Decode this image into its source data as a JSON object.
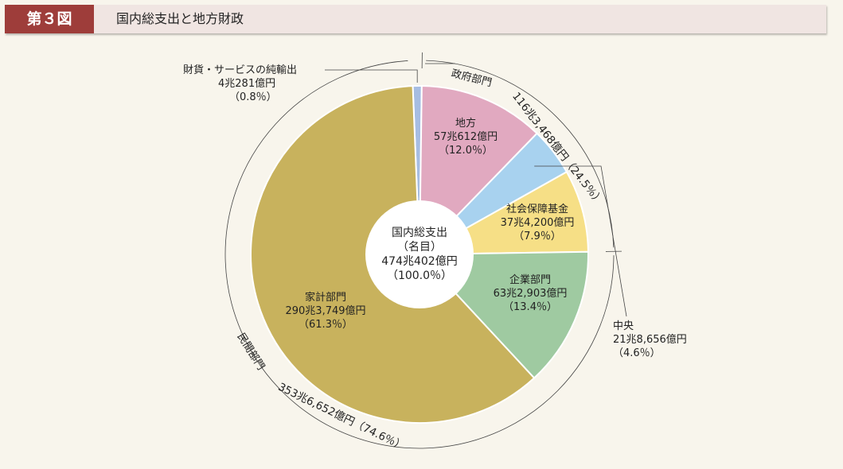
{
  "figure": {
    "label": "第３図",
    "title": "国内総支出と地方財政"
  },
  "chart_data": {
    "type": "pie",
    "subtype": "donut",
    "center_label": [
      "国内総支出",
      "（名目）",
      "474兆402億円",
      "（100.0％）"
    ],
    "total": 474.0402,
    "unit": "兆円",
    "slices": [
      {
        "key": "net_exports",
        "name": "財貨・サービスの純輸出",
        "value_text": "4兆281億円",
        "pct_text": "（0.8％）",
        "value": 4.0281,
        "pct": 0.8,
        "color": "#a6bde2"
      },
      {
        "key": "local",
        "name": "地方",
        "value_text": "57兆612億円",
        "pct_text": "（12.0％）",
        "value": 57.0612,
        "pct": 12.0,
        "color": "#e1a9c0"
      },
      {
        "key": "central",
        "name": "中央",
        "value_text": "21兆8,656億円",
        "pct_text": "（4.6％）",
        "value": 21.8656,
        "pct": 4.6,
        "color": "#a8d2ef"
      },
      {
        "key": "social_security",
        "name": "社会保障基金",
        "value_text": "37兆4,200億円",
        "pct_text": "（7.9％）",
        "value": 37.42,
        "pct": 7.9,
        "color": "#f6df86"
      },
      {
        "key": "corporate",
        "name": "企業部門",
        "value_text": "63兆2,903億円",
        "pct_text": "（13.4％）",
        "value": 63.2903,
        "pct": 13.4,
        "color": "#9fcaa1"
      },
      {
        "key": "household",
        "name": "家計部門",
        "value_text": "290兆3,749億円",
        "pct_text": "（61.3％）",
        "value": 290.3749,
        "pct": 61.3,
        "color": "#c8b25d"
      }
    ],
    "groups": [
      {
        "key": "government",
        "name": "政府部門",
        "value_text": "116兆3,468億円（24.5％）",
        "value": 116.3468,
        "pct": 24.5
      },
      {
        "key": "private",
        "name": "民間部門",
        "value_text": "353兆6,652億円（74.6％）",
        "value": 353.6652,
        "pct": 74.6
      }
    ]
  }
}
